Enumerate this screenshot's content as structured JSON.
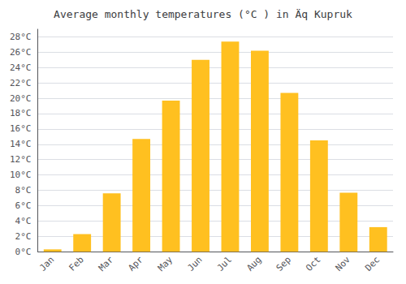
{
  "chart_data": {
    "type": "bar",
    "title": "Average monthly temperatures (°C ) in Äq Kupruk",
    "categories": [
      "Jan",
      "Feb",
      "Mar",
      "Apr",
      "May",
      "Jun",
      "Jul",
      "Aug",
      "Sep",
      "Oct",
      "Nov",
      "Dec"
    ],
    "values": [
      0.3,
      2.3,
      7.6,
      14.7,
      19.7,
      25.0,
      27.4,
      26.2,
      20.7,
      14.5,
      7.7,
      3.2
    ],
    "color": "#FFC020",
    "ylim": [
      0,
      29
    ],
    "yticks": [
      {
        "value": 0,
        "label": "0°C"
      },
      {
        "value": 2,
        "label": "2°C"
      },
      {
        "value": 4,
        "label": "4°C"
      },
      {
        "value": 6,
        "label": "6°C"
      },
      {
        "value": 8,
        "label": "8°C"
      },
      {
        "value": 10,
        "label": "10°C"
      },
      {
        "value": 12,
        "label": "12°C"
      },
      {
        "value": 14,
        "label": "14°C"
      },
      {
        "value": 16,
        "label": "16°C"
      },
      {
        "value": 18,
        "label": "18°C"
      },
      {
        "value": 20,
        "label": "20°C"
      },
      {
        "value": 22,
        "label": "22°C"
      },
      {
        "value": 24,
        "label": "24°C"
      },
      {
        "value": 26,
        "label": "26°C"
      },
      {
        "value": 28,
        "label": "28°C"
      }
    ],
    "grid": true
  }
}
